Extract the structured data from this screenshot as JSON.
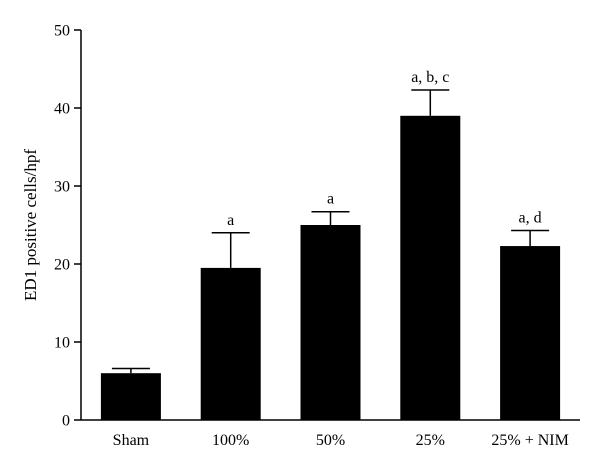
{
  "chart_data": {
    "type": "bar",
    "title": "",
    "xlabel": "",
    "ylabel": "ED1 positive cells/hpf",
    "ylim": [
      0,
      50
    ],
    "yticks": [
      0,
      10,
      20,
      30,
      40,
      50
    ],
    "grid": false,
    "bar_color": "#000000",
    "categories": [
      "Sham",
      "100%",
      "50%",
      "25%",
      "25% + NIM"
    ],
    "values": [
      6.0,
      19.5,
      25.0,
      39.0,
      22.3
    ],
    "error_upper": [
      0.6,
      4.5,
      1.7,
      3.3,
      2.0
    ],
    "annotations": [
      "",
      "a",
      "a",
      "a, b, c",
      "a, d"
    ]
  }
}
